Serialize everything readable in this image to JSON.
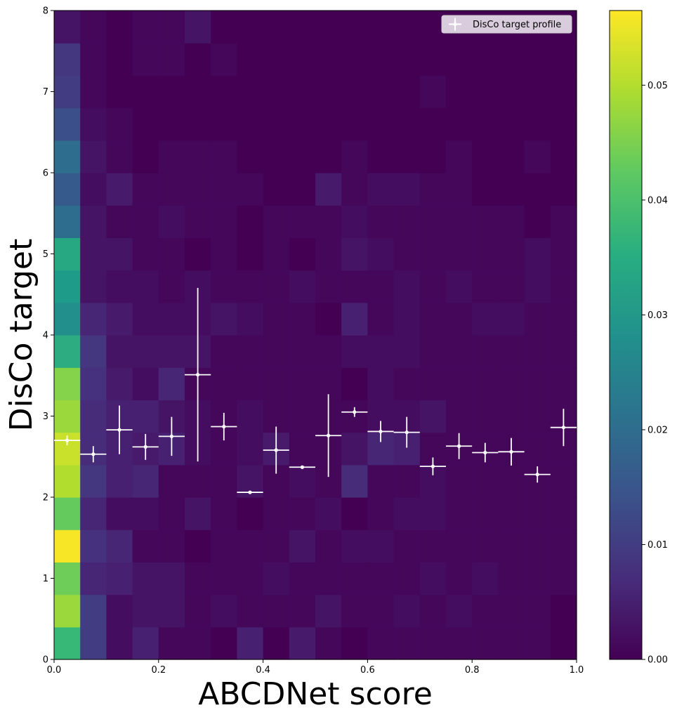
{
  "chart_data": {
    "type": "heatmap",
    "title": "",
    "xlabel": "ABCDNet score",
    "ylabel": "DisCo target",
    "xlim": [
      0,
      1
    ],
    "ylim": [
      0,
      8
    ],
    "x_ticks": [
      "0.0",
      "0.2",
      "0.4",
      "0.6",
      "0.8",
      "1.0"
    ],
    "y_ticks": [
      "0",
      "1",
      "2",
      "3",
      "4",
      "5",
      "6",
      "7",
      "8"
    ],
    "colorbar": {
      "colormap": "viridis",
      "range": [
        0,
        0.0565
      ],
      "ticks": [
        "0.00",
        "0.01",
        "0.02",
        "0.03",
        "0.04",
        "0.05"
      ]
    },
    "x_bins": {
      "start": 0,
      "width": 0.05,
      "count": 20
    },
    "y_bins": {
      "start": 0,
      "width": 0.4,
      "count": 20
    },
    "heatmap_columns": [
      [
        0.038,
        0.048,
        0.044,
        0.056,
        0.043,
        0.05,
        0.052,
        0.048,
        0.046,
        0.035,
        0.028,
        0.031,
        0.034,
        0.02,
        0.016,
        0.02,
        0.014,
        0.01,
        0.009,
        0.003
      ],
      [
        0.01,
        0.01,
        0.006,
        0.008,
        0.006,
        0.009,
        0.007,
        0.007,
        0.008,
        0.009,
        0.006,
        0.003,
        0.003,
        0.003,
        0.002,
        0.003,
        0.002,
        0.001,
        0.001,
        0.001
      ],
      [
        0.002,
        0.002,
        0.005,
        0.006,
        0.002,
        0.005,
        0.005,
        0.005,
        0.004,
        0.003,
        0.004,
        0.002,
        0.003,
        0.001,
        0.004,
        0.001,
        0.001,
        0.0,
        0.0,
        0.0
      ],
      [
        0.005,
        0.003,
        0.003,
        0.001,
        0.002,
        0.006,
        0.004,
        0.005,
        0.002,
        0.003,
        0.002,
        0.002,
        0.001,
        0.001,
        0.001,
        0.0,
        0.0,
        0.0,
        0.001,
        0.001
      ],
      [
        0.001,
        0.003,
        0.003,
        0.001,
        0.001,
        0.001,
        0.005,
        0.003,
        0.006,
        0.003,
        0.002,
        0.001,
        0.001,
        0.002,
        0.001,
        0.001,
        0.0,
        0.0,
        0.001,
        0.001
      ],
      [
        0.001,
        0.001,
        0.001,
        0.0,
        0.003,
        0.001,
        0.002,
        0.002,
        0.001,
        0.003,
        0.002,
        0.002,
        0.0,
        0.001,
        0.001,
        0.001,
        0.0,
        0.0,
        0.0,
        0.003
      ],
      [
        0.0,
        0.002,
        0.001,
        0.001,
        0.001,
        0.001,
        0.001,
        0.001,
        0.001,
        0.001,
        0.003,
        0.001,
        0.001,
        0.001,
        0.001,
        0.001,
        0.0,
        0.0,
        0.001,
        0.0
      ],
      [
        0.005,
        0.001,
        0.001,
        0.001,
        0.0,
        0.003,
        0.002,
        0.002,
        0.001,
        0.001,
        0.002,
        0.001,
        0.0,
        0.0,
        0.001,
        0.0,
        0.0,
        0.0,
        0.0,
        0.0
      ],
      [
        0.0,
        0.001,
        0.002,
        0.001,
        0.001,
        0.001,
        0.004,
        0.001,
        0.001,
        0.001,
        0.001,
        0.001,
        0.001,
        0.001,
        0.0,
        0.0,
        0.0,
        0.0,
        0.0,
        0.0
      ],
      [
        0.004,
        0.001,
        0.001,
        0.003,
        0.001,
        0.002,
        0.001,
        0.001,
        0.001,
        0.001,
        0.001,
        0.002,
        0.0,
        0.001,
        0.0,
        0.0,
        0.0,
        0.0,
        0.0,
        0.0
      ],
      [
        0.001,
        0.003,
        0.001,
        0.001,
        0.002,
        0.001,
        0.001,
        0.001,
        0.001,
        0.001,
        0.0,
        0.001,
        0.001,
        0.001,
        0.004,
        0.0,
        0.0,
        0.0,
        0.0,
        0.0
      ],
      [
        0.0,
        0.001,
        0.001,
        0.002,
        0.0,
        0.007,
        0.003,
        0.001,
        0.0,
        0.002,
        0.005,
        0.001,
        0.003,
        0.002,
        0.001,
        0.001,
        0.0,
        0.0,
        0.0,
        0.0
      ],
      [
        0.001,
        0.001,
        0.001,
        0.002,
        0.001,
        0.001,
        0.006,
        0.002,
        0.002,
        0.002,
        0.001,
        0.001,
        0.002,
        0.001,
        0.002,
        0.0,
        0.0,
        0.0,
        0.0,
        0.0
      ],
      [
        0.001,
        0.002,
        0.001,
        0.001,
        0.002,
        0.001,
        0.005,
        0.002,
        0.001,
        0.002,
        0.002,
        0.002,
        0.001,
        0.001,
        0.002,
        0.0,
        0.0,
        0.0,
        0.0,
        0.0
      ],
      [
        0.001,
        0.001,
        0.002,
        0.001,
        0.002,
        0.002,
        0.001,
        0.003,
        0.001,
        0.001,
        0.001,
        0.001,
        0.001,
        0.001,
        0.001,
        0.0,
        0.0,
        0.001,
        0.0,
        0.0
      ],
      [
        0.001,
        0.002,
        0.001,
        0.001,
        0.001,
        0.001,
        0.001,
        0.001,
        0.001,
        0.001,
        0.001,
        0.002,
        0.001,
        0.001,
        0.001,
        0.001,
        0.0,
        0.0,
        0.0,
        0.0
      ],
      [
        0.001,
        0.001,
        0.002,
        0.001,
        0.001,
        0.001,
        0.001,
        0.001,
        0.001,
        0.001,
        0.002,
        0.001,
        0.001,
        0.001,
        0.0,
        0.0,
        0.0,
        0.0,
        0.0,
        0.0
      ],
      [
        0.001,
        0.001,
        0.001,
        0.001,
        0.001,
        0.001,
        0.001,
        0.001,
        0.001,
        0.001,
        0.002,
        0.001,
        0.001,
        0.001,
        0.0,
        0.0,
        0.0,
        0.0,
        0.0,
        0.0
      ],
      [
        0.001,
        0.001,
        0.001,
        0.001,
        0.001,
        0.001,
        0.001,
        0.001,
        0.001,
        0.001,
        0.001,
        0.002,
        0.002,
        0.0,
        0.0,
        0.001,
        0.0,
        0.0,
        0.0,
        0.0
      ],
      [
        0.0,
        0.0,
        0.001,
        0.001,
        0.001,
        0.001,
        0.001,
        0.001,
        0.001,
        0.001,
        0.001,
        0.001,
        0.001,
        0.001,
        0.0,
        0.0,
        0.0,
        0.0,
        0.0,
        0.0
      ]
    ],
    "series": [
      {
        "name": "DisCo target profile",
        "type": "errorbar",
        "x": [
          0.025,
          0.075,
          0.125,
          0.175,
          0.225,
          0.275,
          0.325,
          0.375,
          0.425,
          0.475,
          0.525,
          0.575,
          0.625,
          0.675,
          0.725,
          0.775,
          0.825,
          0.875,
          0.925,
          0.975
        ],
        "x_err": 0.025,
        "y": [
          2.7,
          2.53,
          2.83,
          2.62,
          2.75,
          3.51,
          2.87,
          2.06,
          2.58,
          2.37,
          2.76,
          3.05,
          2.81,
          2.8,
          2.38,
          2.63,
          2.55,
          2.56,
          2.28,
          2.86
        ],
        "y_err": [
          0.06,
          0.1,
          0.3,
          0.16,
          0.24,
          1.07,
          0.17,
          0.01,
          0.29,
          0.01,
          0.51,
          0.06,
          0.13,
          0.19,
          0.11,
          0.16,
          0.12,
          0.17,
          0.1,
          0.23
        ]
      }
    ],
    "legend": {
      "position": "top-right",
      "entries": [
        "DisCo target profile"
      ]
    }
  }
}
